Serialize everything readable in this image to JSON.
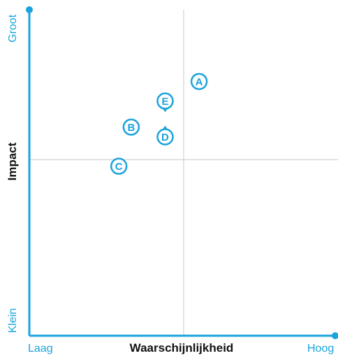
{
  "colors": {
    "accent": "#1aa3dc",
    "text": "#111111",
    "grid": "#c8c8c8",
    "marker_fill": "#ffffff"
  },
  "chart_data": {
    "type": "scatter",
    "title": "",
    "xlabel": "Waarschijnlijkheid",
    "ylabel": "Impact",
    "xlim": [
      0,
      1
    ],
    "ylim": [
      0,
      1
    ],
    "x_end_labels": {
      "min": "Laag",
      "max": "Hoog"
    },
    "y_end_labels": {
      "min": "Klein",
      "max": "Groot"
    },
    "quadrant_dividers": {
      "x": 0.5,
      "y": 0.54
    },
    "grid": false,
    "legend": "none",
    "points": [
      {
        "label": "A",
        "x": 0.55,
        "y": 0.78,
        "tail": "none"
      },
      {
        "label": "E",
        "x": 0.44,
        "y": 0.72,
        "tail": "down"
      },
      {
        "label": "B",
        "x": 0.33,
        "y": 0.64,
        "tail": "none"
      },
      {
        "label": "D",
        "x": 0.44,
        "y": 0.61,
        "tail": "up"
      },
      {
        "label": "C",
        "x": 0.29,
        "y": 0.52,
        "tail": "none"
      }
    ]
  }
}
